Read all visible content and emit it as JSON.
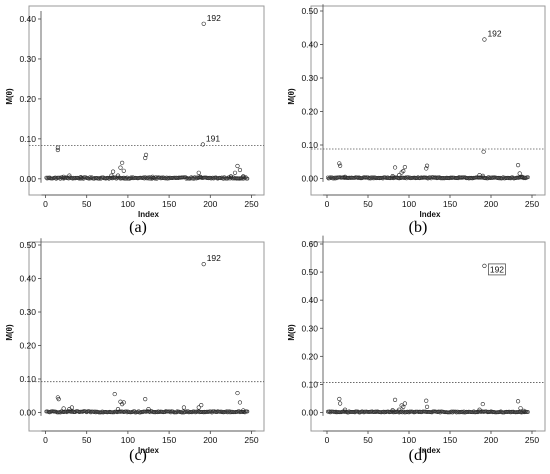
{
  "chart_data": [
    {
      "type": "scatter",
      "caption": "(a)",
      "xlabel": "Index",
      "ylabel": "M(θ)",
      "xlim": [
        0,
        250
      ],
      "ylim": [
        -0.01,
        0.42
      ],
      "xticks": [
        "0",
        "50",
        "100",
        "150",
        "200",
        "250"
      ],
      "xtick_values": [
        0,
        50,
        100,
        150,
        200,
        250
      ],
      "yticks": [
        "0.00",
        "0.10",
        "0.20",
        "0.30",
        "0.40"
      ],
      "ytick_values": [
        0,
        0.1,
        0.2,
        0.3,
        0.4
      ],
      "cutoff": 0.083,
      "cutoff_style": "dotted",
      "points": [
        {
          "x": 15,
          "y": 0.072
        },
        {
          "x": 15,
          "y": 0.078
        },
        {
          "x": 22,
          "y": 0.005
        },
        {
          "x": 29,
          "y": 0.008
        },
        {
          "x": 43,
          "y": 0.004
        },
        {
          "x": 80,
          "y": 0.008
        },
        {
          "x": 82,
          "y": 0.018
        },
        {
          "x": 88,
          "y": 0.008
        },
        {
          "x": 91,
          "y": 0.028
        },
        {
          "x": 93,
          "y": 0.04
        },
        {
          "x": 95,
          "y": 0.02
        },
        {
          "x": 121,
          "y": 0.052
        },
        {
          "x": 122,
          "y": 0.06
        },
        {
          "x": 130,
          "y": 0.005
        },
        {
          "x": 186,
          "y": 0.015
        },
        {
          "x": 188,
          "y": 0.005
        },
        {
          "x": 191,
          "y": 0.086
        },
        {
          "x": 192,
          "y": 0.388
        },
        {
          "x": 225,
          "y": 0.006
        },
        {
          "x": 230,
          "y": 0.015
        },
        {
          "x": 233,
          "y": 0.032
        },
        {
          "x": 236,
          "y": 0.022
        },
        {
          "x": 240,
          "y": 0.006
        }
      ],
      "labels": [
        {
          "text": "192",
          "x": 192,
          "y": 0.388,
          "boxed": false
        },
        {
          "text": "191",
          "x": 191,
          "y": 0.086,
          "boxed": false
        }
      ]
    },
    {
      "type": "scatter",
      "caption": "(b)",
      "xlabel": "Index",
      "ylabel": "M(θ)",
      "xlim": [
        0,
        250
      ],
      "ylim": [
        -0.01,
        0.52
      ],
      "xticks": [
        "0",
        "50",
        "100",
        "150",
        "200",
        "250"
      ],
      "xtick_values": [
        0,
        50,
        100,
        150,
        200,
        250
      ],
      "yticks": [
        "0.00",
        "0.10",
        "0.20",
        "0.30",
        "0.40",
        "0.50"
      ],
      "ytick_values": [
        0,
        0.1,
        0.2,
        0.3,
        0.4,
        0.5
      ],
      "cutoff": 0.088,
      "cutoff_style": "dotted",
      "points": [
        {
          "x": 15,
          "y": 0.045
        },
        {
          "x": 16,
          "y": 0.038
        },
        {
          "x": 22,
          "y": 0.005
        },
        {
          "x": 80,
          "y": 0.007
        },
        {
          "x": 83,
          "y": 0.033
        },
        {
          "x": 88,
          "y": 0.01
        },
        {
          "x": 91,
          "y": 0.018
        },
        {
          "x": 93,
          "y": 0.022
        },
        {
          "x": 95,
          "y": 0.034
        },
        {
          "x": 121,
          "y": 0.03
        },
        {
          "x": 122,
          "y": 0.038
        },
        {
          "x": 186,
          "y": 0.01
        },
        {
          "x": 190,
          "y": 0.008
        },
        {
          "x": 191,
          "y": 0.08
        },
        {
          "x": 192,
          "y": 0.415
        },
        {
          "x": 233,
          "y": 0.04
        },
        {
          "x": 235,
          "y": 0.015
        },
        {
          "x": 238,
          "y": 0.005
        }
      ],
      "labels": [
        {
          "text": "192",
          "x": 192,
          "y": 0.415,
          "boxed": false
        }
      ]
    },
    {
      "type": "scatter",
      "caption": "(c)",
      "xlabel": "Index",
      "ylabel": "M(θ)",
      "xlim": [
        0,
        250
      ],
      "ylim": [
        -0.01,
        0.52
      ],
      "xticks": [
        "0",
        "50",
        "100",
        "150",
        "200",
        "250"
      ],
      "xtick_values": [
        0,
        50,
        100,
        150,
        200,
        250
      ],
      "yticks": [
        "0.00",
        "0.10",
        "0.20",
        "0.30",
        "0.40",
        "0.50"
      ],
      "ytick_values": [
        0,
        0.1,
        0.2,
        0.3,
        0.4,
        0.5
      ],
      "cutoff": 0.092,
      "cutoff_style": "dotted",
      "points": [
        {
          "x": 15,
          "y": 0.045
        },
        {
          "x": 16,
          "y": 0.04
        },
        {
          "x": 22,
          "y": 0.012
        },
        {
          "x": 29,
          "y": 0.01
        },
        {
          "x": 32,
          "y": 0.015
        },
        {
          "x": 84,
          "y": 0.055
        },
        {
          "x": 88,
          "y": 0.01
        },
        {
          "x": 91,
          "y": 0.032
        },
        {
          "x": 93,
          "y": 0.025
        },
        {
          "x": 95,
          "y": 0.03
        },
        {
          "x": 121,
          "y": 0.04
        },
        {
          "x": 125,
          "y": 0.01
        },
        {
          "x": 168,
          "y": 0.015
        },
        {
          "x": 186,
          "y": 0.015
        },
        {
          "x": 189,
          "y": 0.022
        },
        {
          "x": 192,
          "y": 0.443
        },
        {
          "x": 233,
          "y": 0.058
        },
        {
          "x": 236,
          "y": 0.03
        },
        {
          "x": 240,
          "y": 0.006
        }
      ],
      "labels": [
        {
          "text": "192",
          "x": 192,
          "y": 0.443,
          "boxed": false
        }
      ]
    },
    {
      "type": "scatter",
      "caption": "(d)",
      "xlabel": "Index",
      "ylabel": "M(θ)",
      "xlim": [
        0,
        250
      ],
      "ylim": [
        -0.012,
        0.63
      ],
      "xticks": [
        "0",
        "50",
        "100",
        "150",
        "200",
        "250"
      ],
      "xtick_values": [
        0,
        50,
        100,
        150,
        200,
        250
      ],
      "yticks": [
        "0.00",
        "0.10",
        "0.20",
        "0.30",
        "0.40",
        "0.50",
        "0.60"
      ],
      "ytick_values": [
        0,
        0.1,
        0.2,
        0.3,
        0.4,
        0.5,
        0.6
      ],
      "cutoff": 0.107,
      "cutoff_style": "dotted",
      "points": [
        {
          "x": 15,
          "y": 0.048
        },
        {
          "x": 16,
          "y": 0.032
        },
        {
          "x": 22,
          "y": 0.01
        },
        {
          "x": 80,
          "y": 0.008
        },
        {
          "x": 83,
          "y": 0.045
        },
        {
          "x": 88,
          "y": 0.01
        },
        {
          "x": 91,
          "y": 0.025
        },
        {
          "x": 93,
          "y": 0.02
        },
        {
          "x": 95,
          "y": 0.032
        },
        {
          "x": 121,
          "y": 0.042
        },
        {
          "x": 122,
          "y": 0.02
        },
        {
          "x": 186,
          "y": 0.01
        },
        {
          "x": 190,
          "y": 0.03
        },
        {
          "x": 192,
          "y": 0.522
        },
        {
          "x": 233,
          "y": 0.04
        },
        {
          "x": 236,
          "y": 0.015
        },
        {
          "x": 240,
          "y": 0.006
        }
      ],
      "labels": [
        {
          "text": "192",
          "x": 192,
          "y": 0.522,
          "boxed": true
        }
      ]
    }
  ]
}
